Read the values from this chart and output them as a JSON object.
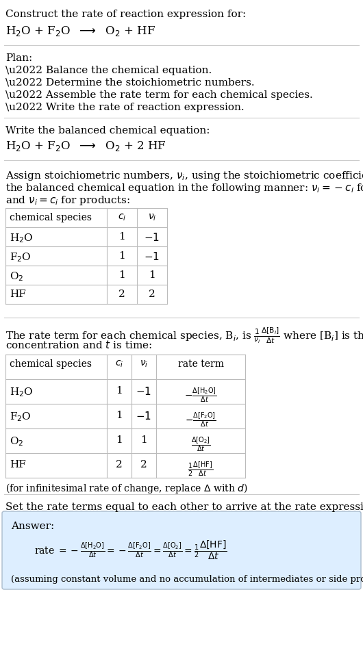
{
  "bg_color": "#ffffff",
  "text_color": "#000000",
  "answer_box_color": "#ddeeff",
  "answer_box_edge": "#aabbcc",
  "title": "Construct the rate of reaction expression for:",
  "reaction_unbalanced": "H$_2$O + F$_2$O  $\\longrightarrow$  O$_2$ + HF",
  "plan_header": "Plan:",
  "plan_items": [
    "\\u2022 Balance the chemical equation.",
    "\\u2022 Determine the stoichiometric numbers.",
    "\\u2022 Assemble the rate term for each chemical species.",
    "\\u2022 Write the rate of reaction expression."
  ],
  "balanced_header": "Write the balanced chemical equation:",
  "reaction_balanced": "H$_2$O + F$_2$O  $\\longrightarrow$  O$_2$ + 2 HF",
  "assign_text": [
    "Assign stoichiometric numbers, $\\nu_i$, using the stoichiometric coefficients, $c_i$, from",
    "the balanced chemical equation in the following manner: $\\nu_i = -c_i$ for reactants",
    "and $\\nu_i = c_i$ for products:"
  ],
  "table1_header": [
    "chemical species",
    "$c_i$",
    "$\\nu_i$"
  ],
  "table1_rows": [
    [
      "H$_2$O",
      "1",
      "$-1$"
    ],
    [
      "F$_2$O",
      "1",
      "$-1$"
    ],
    [
      "O$_2$",
      "1",
      "1"
    ],
    [
      "HF",
      "2",
      "2"
    ]
  ],
  "rate_text": [
    "The rate term for each chemical species, B$_i$, is $\\frac{1}{\\nu_i}\\frac{\\Delta[\\mathrm{B}_i]}{\\Delta t}$ where [B$_i$] is the amount",
    "concentration and $t$ is time:"
  ],
  "table2_header": [
    "chemical species",
    "$c_i$",
    "$\\nu_i$",
    "rate term"
  ],
  "table2_rows": [
    [
      "H$_2$O",
      "1",
      "$-1$",
      "$-\\frac{\\Delta[\\mathrm{H_2O}]}{\\Delta t}$"
    ],
    [
      "F$_2$O",
      "1",
      "$-1$",
      "$-\\frac{\\Delta[\\mathrm{F_2O}]}{\\Delta t}$"
    ],
    [
      "O$_2$",
      "1",
      "1",
      "$\\frac{\\Delta[\\mathrm{O_2}]}{\\Delta t}$"
    ],
    [
      "HF",
      "2",
      "2",
      "$\\frac{1}{2}\\frac{\\Delta[\\mathrm{HF}]}{\\Delta t}$"
    ]
  ],
  "infinitesimal_note": "(for infinitesimal rate of change, replace $\\Delta$ with $d$)",
  "set_rate_text": "Set the rate terms equal to each other to arrive at the rate expression:",
  "answer_label": "Answer:",
  "answer_eq": "rate $= -\\frac{\\Delta[\\mathrm{H_2O}]}{\\Delta t} = -\\frac{\\Delta[\\mathrm{F_2O}]}{\\Delta t} = \\frac{\\Delta[\\mathrm{O_2}]}{\\Delta t} = \\frac{1}{2}\\dfrac{\\Delta[\\mathrm{HF}]}{\\Delta t}$",
  "answer_note": "(assuming constant volume and no accumulation of intermediates or side products)"
}
